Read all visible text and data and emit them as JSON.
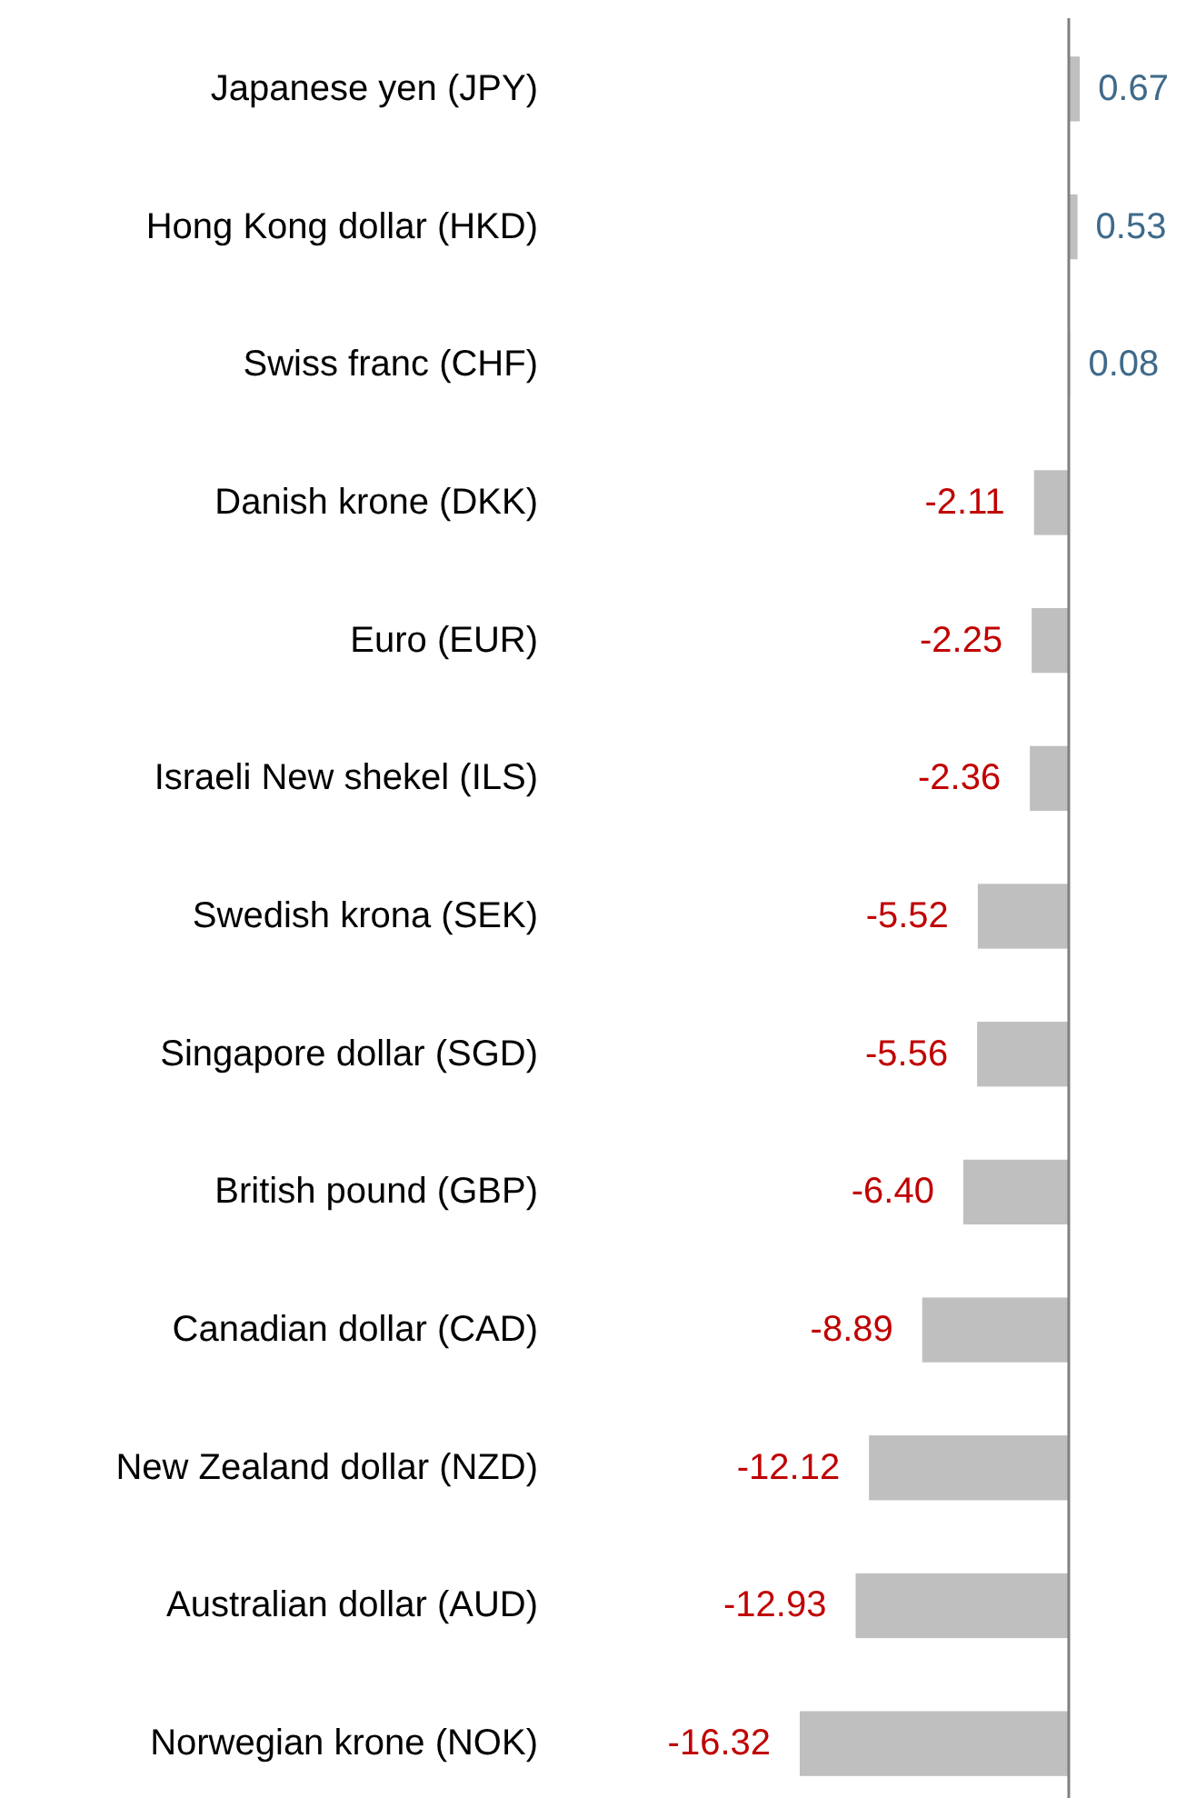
{
  "chart_data": {
    "type": "bar",
    "orientation": "horizontal",
    "categories": [
      "Japanese yen (JPY)",
      "Hong Kong dollar (HKD)",
      "Swiss franc (CHF)",
      "Danish krone (DKK)",
      "Euro (EUR)",
      "Israeli New shekel (ILS)",
      "Swedish krona (SEK)",
      "Singapore dollar (SGD)",
      "British pound (GBP)",
      "Canadian dollar (CAD)",
      "New Zealand dollar (NZD)",
      "Australian dollar (AUD)",
      "Norwegian krone (NOK)"
    ],
    "values": [
      0.67,
      0.53,
      0.08,
      -2.11,
      -2.25,
      -2.36,
      -5.52,
      -5.56,
      -6.4,
      -8.89,
      -12.12,
      -12.93,
      -16.32
    ],
    "value_labels": [
      "0.67",
      "0.53",
      "0.08",
      "-2.11",
      "-2.25",
      "-2.36",
      "-5.52",
      "-5.56",
      "-6.40",
      "-8.89",
      "-12.12",
      "-12.93",
      "-16.32"
    ],
    "color": "#bfbfbf"
  }
}
